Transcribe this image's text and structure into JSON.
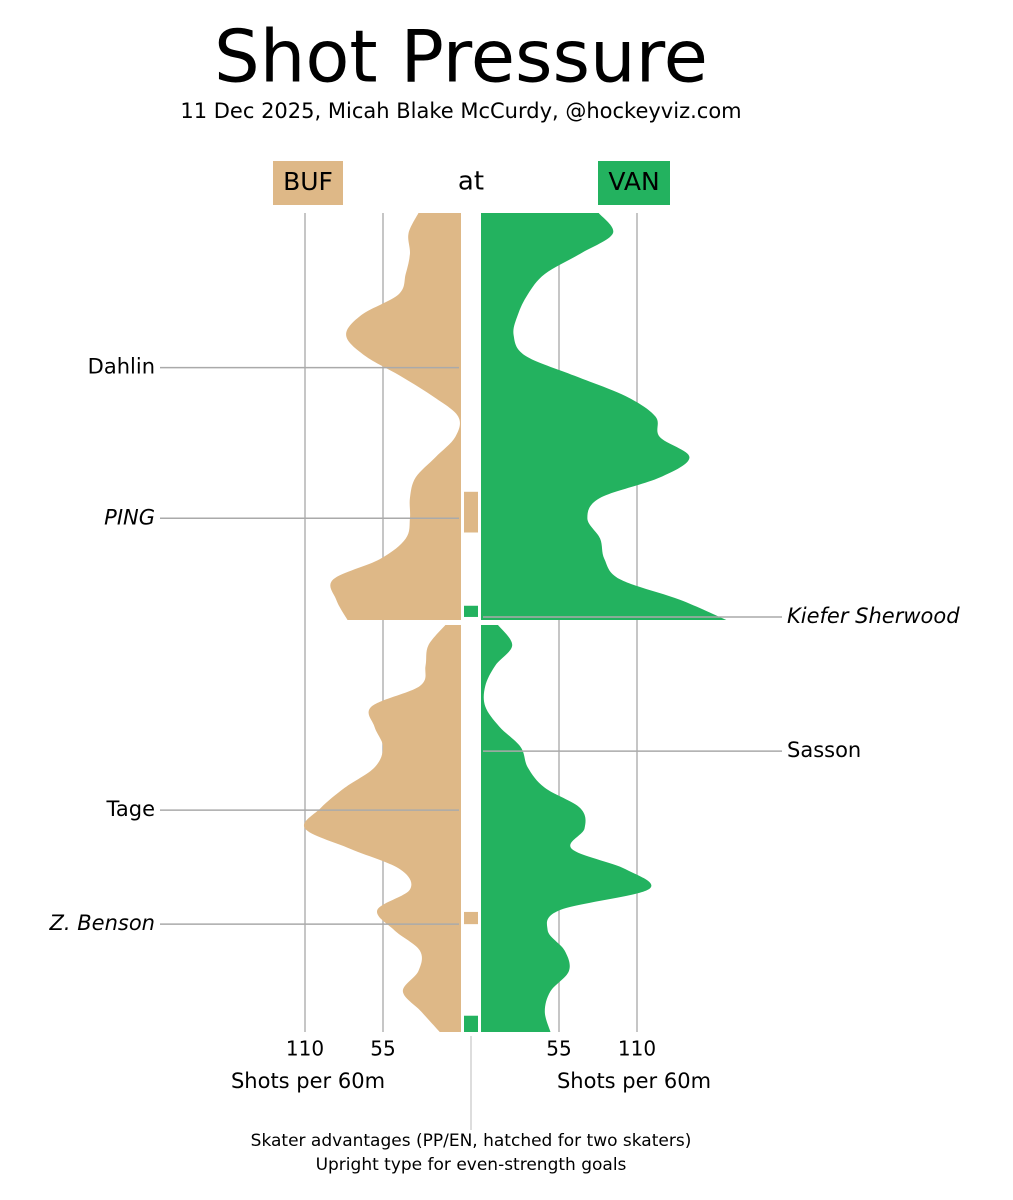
{
  "chart_data": {
    "type": "mirror-area",
    "title": "Shot Pressure",
    "subtitle": "11 Dec 2025, Micah Blake McCurdy, @hockeyviz.com",
    "connector": "at",
    "axis_label": "Shots per 60m",
    "xlim": [
      0,
      180
    ],
    "xticks": [
      55,
      110
    ],
    "grid": true,
    "x": [
      [
        0,
        1,
        2,
        3,
        4,
        5,
        6,
        7,
        8,
        9,
        10,
        11,
        12,
        13,
        14,
        15,
        16,
        17,
        18,
        19,
        20
      ],
      [
        20,
        21,
        22,
        23,
        24,
        25,
        26,
        27,
        28,
        29,
        30,
        31,
        32,
        33,
        34,
        35,
        36,
        37,
        38,
        39,
        40
      ]
    ],
    "series": [
      {
        "name": "BUF",
        "color": "#deb887",
        "values": [
          [
            30,
            37,
            36,
            39,
            44,
            70,
            81,
            68,
            43,
            20,
            2,
            4,
            18,
            32,
            36,
            36,
            39,
            57,
            90,
            88,
            80
          ],
          [
            11,
            23,
            25,
            29,
            63,
            61,
            55,
            61,
            82,
            99,
            110,
            78,
            43,
            36,
            59,
            47,
            29,
            30,
            41,
            28,
            15
          ]
        ]
      },
      {
        "name": "VAN",
        "color": "#23b25f",
        "values": [
          [
            83,
            93,
            70,
            45,
            33,
            26,
            23,
            31,
            66,
            102,
            123,
            126,
            147,
            126,
            84,
            75,
            84,
            87,
            98,
            140,
            173
          ],
          [
            12,
            22,
            10,
            3,
            3,
            13,
            28,
            33,
            45,
            70,
            73,
            64,
            102,
            118,
            56,
            47,
            59,
            62,
            49,
            45,
            49
          ]
        ]
      }
    ],
    "goals": [
      {
        "label": "Dahlin",
        "team": "BUF",
        "time": 7.6,
        "even_strength": true
      },
      {
        "label": "PING",
        "team": "BUF",
        "time": 15.0,
        "even_strength": false
      },
      {
        "label": "Kiefer Sherwood",
        "team": "VAN",
        "time": 19.85,
        "even_strength": false
      },
      {
        "label": "Sasson",
        "team": "VAN",
        "time": 26.2,
        "even_strength": true
      },
      {
        "label": "Tage",
        "team": "BUF",
        "time": 29.1,
        "even_strength": true
      },
      {
        "label": "Z. Benson",
        "team": "BUF",
        "time": 34.7,
        "even_strength": false
      }
    ],
    "advantages": [
      {
        "team": "BUF",
        "start": 13.7,
        "end": 15.7
      },
      {
        "team": "VAN",
        "start": 19.3,
        "end": 19.85
      },
      {
        "team": "BUF",
        "start": 34.1,
        "end": 34.7
      },
      {
        "team": "VAN",
        "start": 39.2,
        "end": 40
      }
    ],
    "notes": [
      "Skater advantages (PP/EN, hatched for two skaters)",
      "Upright type for even-strength goals"
    ]
  }
}
